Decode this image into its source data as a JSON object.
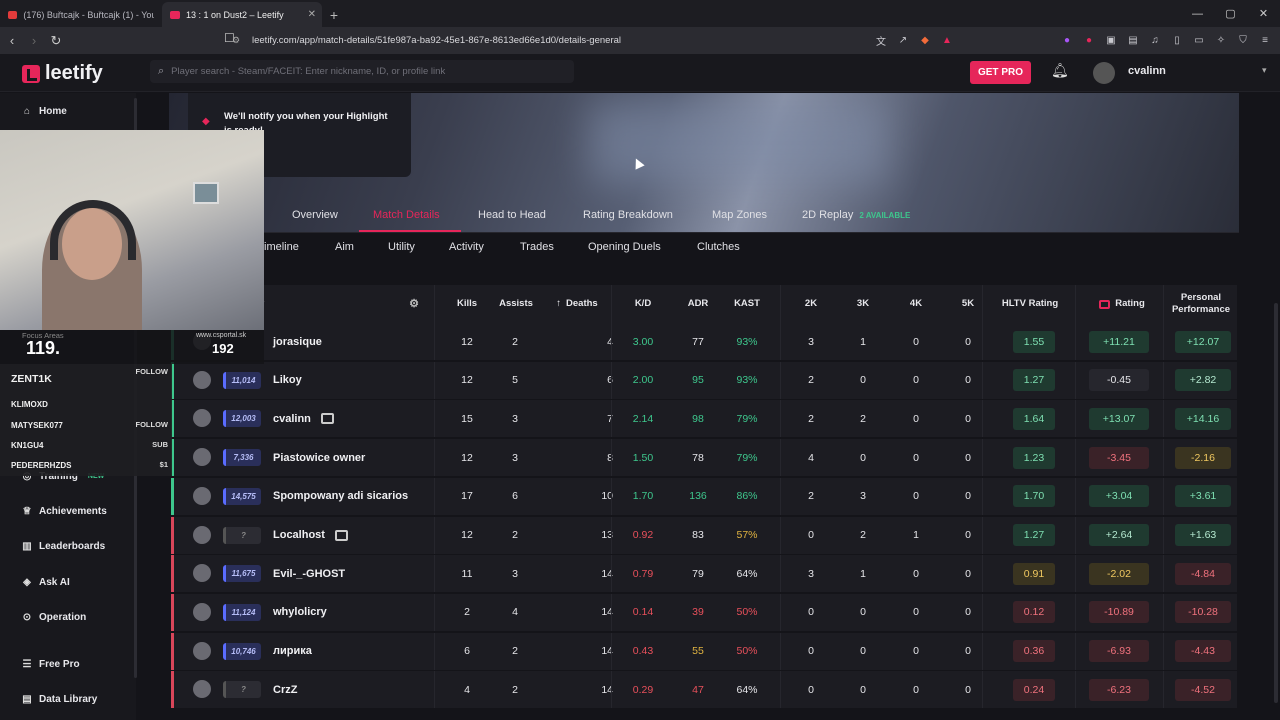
{
  "browser": {
    "tabs": [
      {
        "label": "(176) Buřtcajk - Buřtcajk (1) - YouTub",
        "color": "#e23b3b"
      },
      {
        "label": "13 : 1 on Dust2 – Leetify",
        "color": "#e6265a"
      }
    ],
    "url": "leetify.com/app/match-details/51fe987a-ba92-45e1-867e-8613ed66e1d0/details-general"
  },
  "header": {
    "logo": "leetify",
    "search_placeholder": "Player search - Steam/FACEIT: Enter nickname, ID, or profile link",
    "get_pro": "GET PRO",
    "username": "cvalinn"
  },
  "sidebar": {
    "items": [
      {
        "label": "Home",
        "icon": "home-icon"
      },
      {
        "label": "Training",
        "icon": "training-icon",
        "badge": "NEW"
      },
      {
        "label": "Achievements",
        "icon": "trophy-icon"
      },
      {
        "label": "Leaderboards",
        "icon": "bars-icon"
      },
      {
        "label": "Ask AI",
        "icon": "ai-icon"
      },
      {
        "label": "Operation",
        "icon": "target-icon"
      },
      {
        "label": "Free Pro",
        "icon": "list-icon"
      },
      {
        "label": "Data Library",
        "icon": "book-icon"
      }
    ]
  },
  "notify": "We'll notify you when your Highlight is ready!",
  "tabs": {
    "primary": [
      "Overview",
      "Match Details",
      "Head to Head",
      "Rating Breakdown",
      "Map Zones",
      "2D Replay"
    ],
    "available": "2 AVAILABLE",
    "secondary": [
      "imeline",
      "Aim",
      "Utility",
      "Activity",
      "Trades",
      "Opening Duels",
      "Clutches"
    ]
  },
  "table": {
    "headers": {
      "player": "y",
      "kills": "Kills",
      "assists": "Assists",
      "deaths": "Deaths",
      "kd": "K/D",
      "adr": "ADR",
      "kast": "KAST",
      "k2": "2K",
      "k3": "3K",
      "k4": "4K",
      "k5": "5K",
      "hltv": "HLTV Rating",
      "rating": "Rating",
      "personal": "Personal Performance"
    },
    "rows": [
      {
        "side": "#3ec78d",
        "rank": "",
        "name": "jorasique",
        "kills": "12",
        "assists": "2",
        "deaths": "4",
        "kd": "3.00",
        "adr": "77",
        "kast": "93%",
        "k2": "3",
        "k3": "1",
        "k4": "0",
        "k5": "0",
        "hltv": "1.55",
        "rating": "+11.21",
        "personal": "+12.07",
        "team": "win"
      },
      {
        "side": "#3ec78d",
        "rank": "11,014",
        "name": "Likoy",
        "kills": "12",
        "assists": "5",
        "deaths": "6",
        "kd": "2.00",
        "adr": "95",
        "kast": "93%",
        "k2": "2",
        "k3": "0",
        "k4": "0",
        "k5": "0",
        "hltv": "1.27",
        "rating": "-0.45",
        "personal": "+2.82",
        "team": "win"
      },
      {
        "side": "#3ec78d",
        "rank": "12,003",
        "name": "cvalinn",
        "kills": "15",
        "assists": "3",
        "deaths": "7",
        "kd": "2.14",
        "adr": "98",
        "kast": "79%",
        "k2": "2",
        "k3": "2",
        "k4": "0",
        "k5": "0",
        "hltv": "1.64",
        "rating": "+13.07",
        "personal": "+14.16",
        "team": "win",
        "pro": true
      },
      {
        "side": "#3ec78d",
        "rank": "7,336",
        "name": "Piastowice owner",
        "kills": "12",
        "assists": "3",
        "deaths": "8",
        "kd": "1.50",
        "adr": "78",
        "kast": "79%",
        "k2": "4",
        "k3": "0",
        "k4": "0",
        "k5": "0",
        "hltv": "1.23",
        "rating": "-3.45",
        "personal": "-2.16",
        "team": "win"
      },
      {
        "side": "#3ec78d",
        "rank": "14,575",
        "name": "Spompowany adi sicarios",
        "kills": "17",
        "assists": "6",
        "deaths": "10",
        "kd": "1.70",
        "adr": "136",
        "kast": "86%",
        "k2": "2",
        "k3": "3",
        "k4": "0",
        "k5": "0",
        "hltv": "1.70",
        "rating": "+3.04",
        "personal": "+3.61",
        "team": "win"
      },
      {
        "side": "#d9465a",
        "rank": "?",
        "name": "Localhost",
        "kills": "12",
        "assists": "2",
        "deaths": "13",
        "kd": "0.92",
        "adr": "83",
        "kast": "57%",
        "k2": "0",
        "k3": "2",
        "k4": "1",
        "k5": "0",
        "hltv": "1.27",
        "rating": "+2.64",
        "personal": "+1.63",
        "team": "loss",
        "pro": true
      },
      {
        "side": "#d9465a",
        "rank": "11,675",
        "name": "Evil-_-GHOST",
        "kills": "11",
        "assists": "3",
        "deaths": "14",
        "kd": "0.79",
        "adr": "79",
        "kast": "64%",
        "k2": "3",
        "k3": "1",
        "k4": "0",
        "k5": "0",
        "hltv": "0.91",
        "rating": "-2.02",
        "personal": "-4.84",
        "team": "loss"
      },
      {
        "side": "#d9465a",
        "rank": "11,124",
        "name": "whylolicry",
        "kills": "2",
        "assists": "4",
        "deaths": "14",
        "kd": "0.14",
        "adr": "39",
        "kast": "50%",
        "k2": "0",
        "k3": "0",
        "k4": "0",
        "k5": "0",
        "hltv": "0.12",
        "rating": "-10.89",
        "personal": "-10.28",
        "team": "loss"
      },
      {
        "side": "#d9465a",
        "rank": "10,746",
        "name": "лирика",
        "kills": "6",
        "assists": "2",
        "deaths": "14",
        "kd": "0.43",
        "adr": "55",
        "kast": "50%",
        "k2": "0",
        "k3": "0",
        "k4": "0",
        "k5": "0",
        "hltv": "0.36",
        "rating": "-6.93",
        "personal": "-4.43",
        "team": "loss"
      },
      {
        "side": "#d9465a",
        "rank": "?",
        "name": "CrzZ",
        "kills": "4",
        "assists": "2",
        "deaths": "14",
        "kd": "0.29",
        "adr": "47",
        "kast": "64%",
        "k2": "0",
        "k3": "0",
        "k4": "0",
        "k5": "0",
        "hltv": "0.24",
        "rating": "-6.23",
        "personal": "-4.52",
        "team": "loss"
      }
    ]
  },
  "overlay": {
    "focus_label": "Focus Areas",
    "focus_value": "119.",
    "site": "www.csportal.sk",
    "site_value": "192",
    "chat": [
      {
        "name": "ZENT1K",
        "action": "FOLLOW"
      },
      {
        "name": "KLIMOXD",
        "action": ""
      },
      {
        "name": "MATYSEK077",
        "action": "FOLLOW"
      },
      {
        "name": "KN1GU4",
        "action": "SUB"
      },
      {
        "name": "PEDERERHZDS",
        "action": "$1"
      }
    ]
  },
  "colors": {
    "accent": "#e6265a",
    "positive": "#3ec78d",
    "negative": "#e8505b",
    "gold": "#e0b341"
  }
}
